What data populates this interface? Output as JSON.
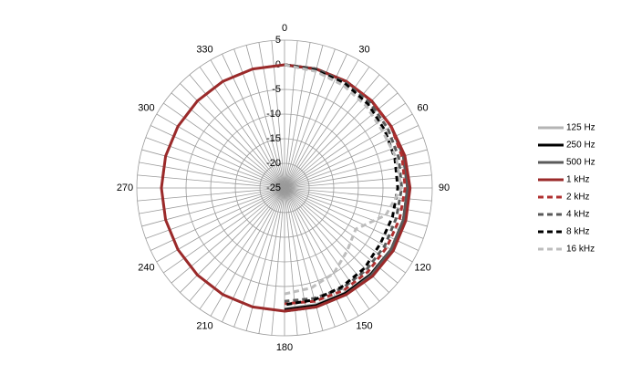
{
  "chart_data": {
    "type": "polar",
    "theta": [
      0,
      15,
      30,
      45,
      60,
      75,
      90,
      105,
      120,
      135,
      150,
      165,
      180,
      195,
      210,
      225,
      240,
      255,
      270,
      285,
      300,
      315,
      330,
      345
    ],
    "rlim": [
      -25,
      5
    ],
    "rticks": [
      -25,
      -20,
      -15,
      -10,
      -5,
      0,
      5
    ],
    "thetaticks": [
      0,
      30,
      60,
      90,
      120,
      150,
      180,
      210,
      240,
      270,
      300,
      330
    ],
    "grid": true,
    "legend": "right",
    "series": [
      {
        "name": "125 Hz",
        "color": "#b4b4b4",
        "line_style": "solid",
        "values": [
          0,
          0,
          0,
          0,
          0,
          0,
          0,
          0,
          0,
          -0.3,
          -0.4,
          -0.5,
          -0.5,
          null,
          null,
          null,
          null,
          null,
          null,
          null,
          null,
          null,
          null,
          null
        ]
      },
      {
        "name": "250 Hz",
        "color": "#000000",
        "line_style": "solid",
        "values": [
          0,
          0,
          0,
          0,
          0,
          0,
          0,
          0,
          0,
          -0.2,
          -0.3,
          -0.3,
          -0.3,
          null,
          null,
          null,
          null,
          null,
          null,
          null,
          null,
          null,
          null,
          null
        ]
      },
      {
        "name": "500 Hz",
        "color": "#5a5a5a",
        "line_style": "solid",
        "values": [
          0,
          0,
          0,
          0,
          0,
          0,
          0,
          0,
          0,
          0,
          0,
          0,
          0,
          null,
          null,
          null,
          null,
          null,
          null,
          null,
          null,
          null,
          null,
          null
        ]
      },
      {
        "name": "1 kHz",
        "color": "#9b2a2a",
        "line_style": "solid",
        "values": [
          0,
          0,
          0,
          0,
          0,
          0.3,
          0.5,
          0.5,
          0.5,
          0.3,
          0,
          0,
          0,
          0,
          0,
          0,
          0,
          0,
          0,
          0,
          0,
          0,
          0,
          0
        ]
      },
      {
        "name": "2 kHz",
        "color": "#b03030",
        "line_style": "dashed",
        "values": [
          0,
          0,
          0,
          0,
          0,
          -0.3,
          -0.5,
          -0.8,
          -1,
          -1,
          -1,
          -1.2,
          -1.5,
          null,
          null,
          null,
          null,
          null,
          null,
          null,
          null,
          null,
          null,
          null
        ]
      },
      {
        "name": "4 kHz",
        "color": "#5a5a5a",
        "line_style": "dashed",
        "values": [
          0,
          0,
          -0.3,
          -0.5,
          -0.8,
          -1,
          -1.2,
          -1.5,
          -1.5,
          -1.5,
          -1.5,
          -1.8,
          -2,
          null,
          null,
          null,
          null,
          null,
          null,
          null,
          null,
          null,
          null,
          null
        ]
      },
      {
        "name": "8 kHz",
        "color": "#000000",
        "line_style": "dashed",
        "values": [
          0,
          -0.3,
          -0.5,
          -1,
          -1.5,
          -1.8,
          -2,
          -2.3,
          -2.5,
          -2,
          -1.8,
          -1.5,
          -1.3,
          null,
          null,
          null,
          null,
          null,
          null,
          null,
          null,
          null,
          null,
          null
        ]
      },
      {
        "name": "16 kHz",
        "color": "#bdbdbd",
        "line_style": "dashed",
        "values": [
          0,
          -0.5,
          -1,
          -1.5,
          -2,
          -1.5,
          -1.3,
          -3.7,
          -8.3,
          -7,
          -5,
          -4,
          -3.5,
          null,
          null,
          null,
          null,
          null,
          null,
          null,
          null,
          null,
          null,
          null
        ]
      }
    ]
  }
}
